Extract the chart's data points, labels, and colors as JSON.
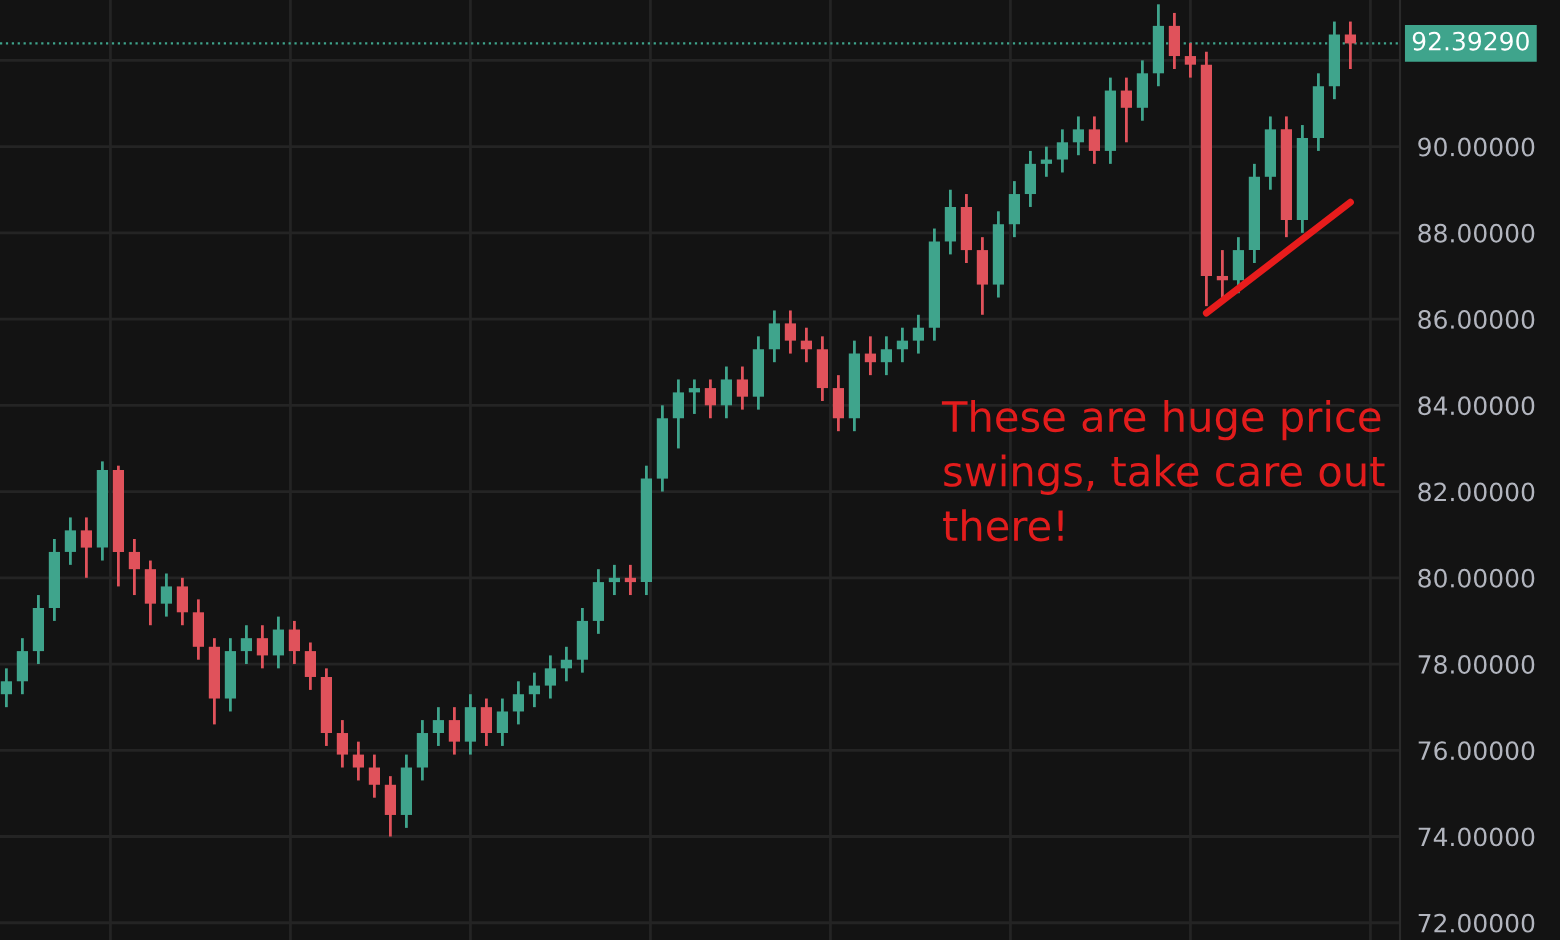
{
  "chart_data": {
    "type": "candlestick",
    "categories": [
      null,
      null,
      null,
      null,
      null,
      null,
      null,
      null,
      null,
      null,
      null,
      null,
      null,
      null,
      null,
      null,
      null,
      null,
      null,
      null,
      null,
      null,
      null,
      null,
      null,
      null,
      null,
      null,
      null,
      null,
      null,
      null,
      null,
      null,
      null,
      null,
      null,
      null,
      null,
      null,
      null,
      null,
      null,
      null,
      null,
      null,
      null,
      null,
      null,
      null,
      null,
      null,
      null,
      null,
      null,
      null,
      null,
      null,
      null,
      null,
      null,
      null,
      null,
      null,
      null,
      null,
      null,
      null,
      null,
      null,
      null,
      null,
      null,
      null,
      null,
      null,
      null,
      null,
      null,
      null,
      null,
      null,
      null,
      null,
      null
    ],
    "ohlc": [
      [
        77.3,
        77.9,
        77.0,
        77.6
      ],
      [
        77.6,
        78.6,
        77.3,
        78.3
      ],
      [
        78.3,
        79.6,
        78.0,
        79.3
      ],
      [
        79.3,
        80.9,
        79.0,
        80.6
      ],
      [
        80.6,
        81.4,
        80.3,
        81.1
      ],
      [
        81.1,
        81.4,
        80.0,
        80.7
      ],
      [
        80.7,
        82.7,
        80.4,
        82.5
      ],
      [
        82.5,
        82.6,
        79.8,
        80.6
      ],
      [
        80.6,
        80.9,
        79.6,
        80.2
      ],
      [
        80.2,
        80.4,
        78.9,
        79.4
      ],
      [
        79.4,
        80.1,
        79.1,
        79.8
      ],
      [
        79.8,
        80.0,
        78.9,
        79.2
      ],
      [
        79.2,
        79.5,
        78.1,
        78.4
      ],
      [
        78.4,
        78.6,
        76.6,
        77.2
      ],
      [
        77.2,
        78.6,
        76.9,
        78.3
      ],
      [
        78.3,
        78.9,
        78.0,
        78.6
      ],
      [
        78.6,
        78.9,
        77.9,
        78.2
      ],
      [
        78.2,
        79.1,
        77.9,
        78.8
      ],
      [
        78.8,
        79.0,
        78.0,
        78.3
      ],
      [
        78.3,
        78.5,
        77.4,
        77.7
      ],
      [
        77.7,
        77.9,
        76.1,
        76.4
      ],
      [
        76.4,
        76.7,
        75.6,
        75.9
      ],
      [
        75.9,
        76.2,
        75.3,
        75.6
      ],
      [
        75.6,
        75.9,
        74.9,
        75.2
      ],
      [
        75.2,
        75.4,
        74.0,
        74.5
      ],
      [
        74.5,
        75.9,
        74.2,
        75.6
      ],
      [
        75.6,
        76.7,
        75.3,
        76.4
      ],
      [
        76.4,
        77.0,
        76.1,
        76.7
      ],
      [
        76.7,
        77.0,
        75.9,
        76.2
      ],
      [
        76.2,
        77.3,
        75.9,
        77.0
      ],
      [
        77.0,
        77.2,
        76.1,
        76.4
      ],
      [
        76.4,
        77.2,
        76.1,
        76.9
      ],
      [
        76.9,
        77.6,
        76.6,
        77.3
      ],
      [
        77.3,
        77.8,
        77.0,
        77.5
      ],
      [
        77.5,
        78.2,
        77.2,
        77.9
      ],
      [
        77.9,
        78.4,
        77.6,
        78.1
      ],
      [
        78.1,
        79.3,
        77.8,
        79.0
      ],
      [
        79.0,
        80.2,
        78.7,
        79.9
      ],
      [
        79.9,
        80.3,
        79.6,
        80.0
      ],
      [
        80.0,
        80.3,
        79.6,
        79.9
      ],
      [
        79.9,
        82.6,
        79.6,
        82.3
      ],
      [
        82.3,
        84.0,
        82.0,
        83.7
      ],
      [
        83.7,
        84.6,
        83.0,
        84.3
      ],
      [
        84.3,
        84.6,
        83.8,
        84.4
      ],
      [
        84.4,
        84.6,
        83.7,
        84.0
      ],
      [
        84.0,
        84.9,
        83.7,
        84.6
      ],
      [
        84.6,
        84.9,
        83.9,
        84.2
      ],
      [
        84.2,
        85.6,
        83.9,
        85.3
      ],
      [
        85.3,
        86.2,
        85.0,
        85.9
      ],
      [
        85.9,
        86.2,
        85.2,
        85.5
      ],
      [
        85.5,
        85.8,
        85.0,
        85.3
      ],
      [
        85.3,
        85.6,
        84.1,
        84.4
      ],
      [
        84.4,
        84.7,
        83.4,
        83.7
      ],
      [
        83.7,
        85.5,
        83.4,
        85.2
      ],
      [
        85.2,
        85.6,
        84.7,
        85.0
      ],
      [
        85.0,
        85.6,
        84.7,
        85.3
      ],
      [
        85.3,
        85.8,
        85.0,
        85.5
      ],
      [
        85.5,
        86.1,
        85.2,
        85.8
      ],
      [
        85.8,
        88.1,
        85.5,
        87.8
      ],
      [
        87.8,
        89.0,
        87.5,
        88.6
      ],
      [
        88.6,
        88.9,
        87.3,
        87.6
      ],
      [
        87.6,
        87.9,
        86.1,
        86.8
      ],
      [
        86.8,
        88.5,
        86.5,
        88.2
      ],
      [
        88.2,
        89.2,
        87.9,
        88.9
      ],
      [
        88.9,
        89.9,
        88.6,
        89.6
      ],
      [
        89.6,
        90.0,
        89.3,
        89.7
      ],
      [
        89.7,
        90.4,
        89.4,
        90.1
      ],
      [
        90.1,
        90.7,
        89.8,
        90.4
      ],
      [
        90.4,
        90.7,
        89.6,
        89.9
      ],
      [
        89.9,
        91.6,
        89.6,
        91.3
      ],
      [
        91.3,
        91.6,
        90.1,
        90.9
      ],
      [
        90.9,
        92.0,
        90.6,
        91.7
      ],
      [
        91.7,
        93.3,
        91.4,
        92.8
      ],
      [
        92.8,
        93.1,
        91.8,
        92.1
      ],
      [
        92.1,
        92.4,
        91.6,
        91.9
      ],
      [
        91.9,
        92.2,
        86.3,
        87.0
      ],
      [
        87.0,
        87.6,
        86.4,
        86.9
      ],
      [
        86.9,
        87.9,
        86.6,
        87.6
      ],
      [
        87.6,
        89.6,
        87.3,
        89.3
      ],
      [
        89.3,
        90.7,
        89.0,
        90.4
      ],
      [
        90.4,
        90.7,
        87.9,
        88.3
      ],
      [
        88.3,
        90.5,
        88.0,
        90.2
      ],
      [
        90.2,
        91.7,
        89.9,
        91.4
      ],
      [
        91.4,
        92.9,
        91.1,
        92.6
      ],
      [
        92.6,
        92.9,
        91.8,
        92.3929
      ]
    ],
    "colors": [
      "#3fa48c",
      "#3fa48c",
      "#3fa48c",
      "#3fa48c",
      "#3fa48c",
      "#e0525b",
      "#3fa48c",
      "#e0525b",
      "#e0525b",
      "#e0525b",
      "#3fa48c",
      "#e0525b",
      "#e0525b",
      "#e0525b",
      "#3fa48c",
      "#3fa48c",
      "#e0525b",
      "#3fa48c",
      "#e0525b",
      "#e0525b",
      "#e0525b",
      "#e0525b",
      "#e0525b",
      "#e0525b",
      "#e0525b",
      "#3fa48c",
      "#3fa48c",
      "#3fa48c",
      "#e0525b",
      "#3fa48c",
      "#e0525b",
      "#3fa48c",
      "#3fa48c",
      "#3fa48c",
      "#3fa48c",
      "#3fa48c",
      "#3fa48c",
      "#3fa48c",
      "#3fa48c",
      "#e0525b",
      "#3fa48c",
      "#3fa48c",
      "#3fa48c",
      "#3fa48c",
      "#e0525b",
      "#3fa48c",
      "#e0525b",
      "#3fa48c",
      "#3fa48c",
      "#e0525b",
      "#e0525b",
      "#e0525b",
      "#e0525b",
      "#3fa48c",
      "#e0525b",
      "#3fa48c",
      "#3fa48c",
      "#3fa48c",
      "#3fa48c",
      "#3fa48c",
      "#e0525b",
      "#e0525b",
      "#3fa48c",
      "#3fa48c",
      "#3fa48c",
      "#3fa48c",
      "#3fa48c",
      "#3fa48c",
      "#e0525b",
      "#3fa48c",
      "#e0525b",
      "#3fa48c",
      "#3fa48c",
      "#e0525b",
      "#e0525b",
      "#e0525b",
      "#e0525b",
      "#3fa48c",
      "#3fa48c",
      "#3fa48c",
      "#e0525b",
      "#3fa48c",
      "#3fa48c",
      "#3fa48c",
      "#e0525b"
    ],
    "series": [
      {
        "type": "line",
        "values": [
          null,
          null,
          null,
          null,
          null,
          null,
          null,
          null,
          null,
          null,
          null,
          null,
          null,
          null,
          null,
          null,
          null,
          null,
          null,
          null,
          null,
          null,
          null,
          null,
          null,
          null,
          null,
          null,
          null,
          null,
          null,
          null,
          null,
          null,
          null,
          null,
          null,
          null,
          null,
          null,
          null,
          null,
          null,
          null,
          null,
          null,
          null,
          null,
          null,
          null,
          null,
          null,
          null,
          null,
          null,
          null,
          null,
          null,
          null,
          null,
          null,
          null,
          null,
          null,
          null,
          null,
          null,
          null,
          null,
          null,
          null,
          null,
          null,
          null,
          null,
          86.14,
          null,
          null,
          null,
          null,
          null,
          null,
          null,
          null,
          88.71
        ],
        "color": "#e81c1c"
      }
    ],
    "ylim": [
      71.6,
      93.4
    ],
    "yticks": [
      {
        "value": 72,
        "label": "72.00000"
      },
      {
        "value": 74,
        "label": "74.00000"
      },
      {
        "value": 76,
        "label": "76.00000"
      },
      {
        "value": 78,
        "label": "78.00000"
      },
      {
        "value": 80,
        "label": "80.00000"
      },
      {
        "value": 82,
        "label": "82.00000"
      },
      {
        "value": 84,
        "label": "84.00000"
      },
      {
        "value": 86,
        "label": "86.00000"
      },
      {
        "value": 88,
        "label": "88.00000"
      },
      {
        "value": 90,
        "label": "90.00000"
      },
      {
        "value": 92,
        "label": null
      }
    ],
    "ref_lines": [
      {
        "axis": "y",
        "value": 92.3929,
        "label": "92.39290",
        "color": "#3fa48c",
        "line_style": "dotted"
      }
    ],
    "annotations": [
      "These are huge price\nswings, take care out\nthere!"
    ],
    "grid": true,
    "tick_labels": "y"
  }
}
